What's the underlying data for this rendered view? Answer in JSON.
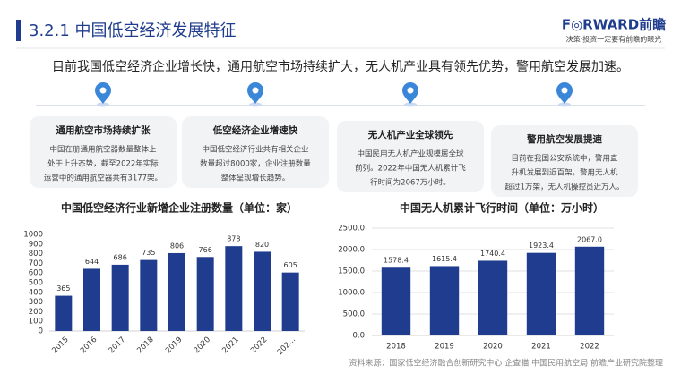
{
  "header": {
    "title": "3.2.1 中国低空经济发展特征",
    "logo": "F◎RWARD前瞻",
    "tagline": "决策·投资一定要有前瞻的眼光"
  },
  "summary": "目前我国低空经济企业增长快，通用航空市场持续扩大，无人机产业具有领先优势，警用航空发展加速。",
  "cards": [
    {
      "title": "通用航空市场持续扩张",
      "lines": [
        "中国在册通用航空器数量整体上",
        "处于上升态势，截至2022年实际",
        "运营中的通用航空器共有3177架。"
      ]
    },
    {
      "title": "低空经济企业增速快",
      "lines": [
        "中国低空经济行业共有相关企业",
        "数量超过8000家，企业注册数量",
        "整体呈现增长趋势。"
      ]
    },
    {
      "title": "无人机产业全球领先",
      "lines": [
        "中国民用无人机产业规模居全球",
        "前列。2022年中国无人机累计飞",
        "行时间为2067万小时。"
      ]
    },
    {
      "title": "警用航空发展提速",
      "lines": [
        "目前在我国公安系统中，警用直",
        "升机发展到近百架，警用无人机",
        "超过1万架，无人机操控员近万人。"
      ]
    }
  ],
  "chart_data": [
    {
      "type": "bar",
      "title": "中国低空经济行业新增企业注册数量（单位：家）",
      "categories": [
        "2015",
        "2016",
        "2017",
        "2018",
        "2019",
        "2020",
        "2021",
        "2022",
        "202..."
      ],
      "values": [
        365,
        644,
        686,
        735,
        806,
        766,
        878,
        820,
        605
      ],
      "color": "#1f3c8e",
      "ylim": [
        0,
        1000
      ],
      "yticks": [
        0,
        100,
        200,
        300,
        400,
        500,
        600,
        700,
        800,
        900,
        1000
      ],
      "grid": false
    },
    {
      "type": "bar",
      "title": "中国无人机累计飞行时间（单位：万小时）",
      "categories": [
        "2018",
        "2019",
        "2020",
        "2021",
        "2022"
      ],
      "values": [
        1578.4,
        1615.4,
        1740.4,
        1923.4,
        2067
      ],
      "value_labels": [
        "1578.4",
        "1615.4",
        "1740.4",
        "1923.4",
        "2067.0"
      ],
      "color": "#1f3c8e",
      "ylim": [
        0,
        2500
      ],
      "yticks": [
        {
          "value": 0,
          "label": "0.0"
        },
        {
          "value": 500,
          "label": "500.0"
        },
        {
          "value": 1000,
          "label": "1000.0"
        },
        {
          "value": 1500,
          "label": "1500.0"
        },
        {
          "value": 2000,
          "label": "2000.0"
        },
        {
          "value": 2500,
          "label": "2500.0"
        }
      ],
      "grid": true
    }
  ],
  "source": "资料来源：国家低空经济融合创新研究中心 企查猫 中国民用航空局 前瞻产业研究院整理"
}
